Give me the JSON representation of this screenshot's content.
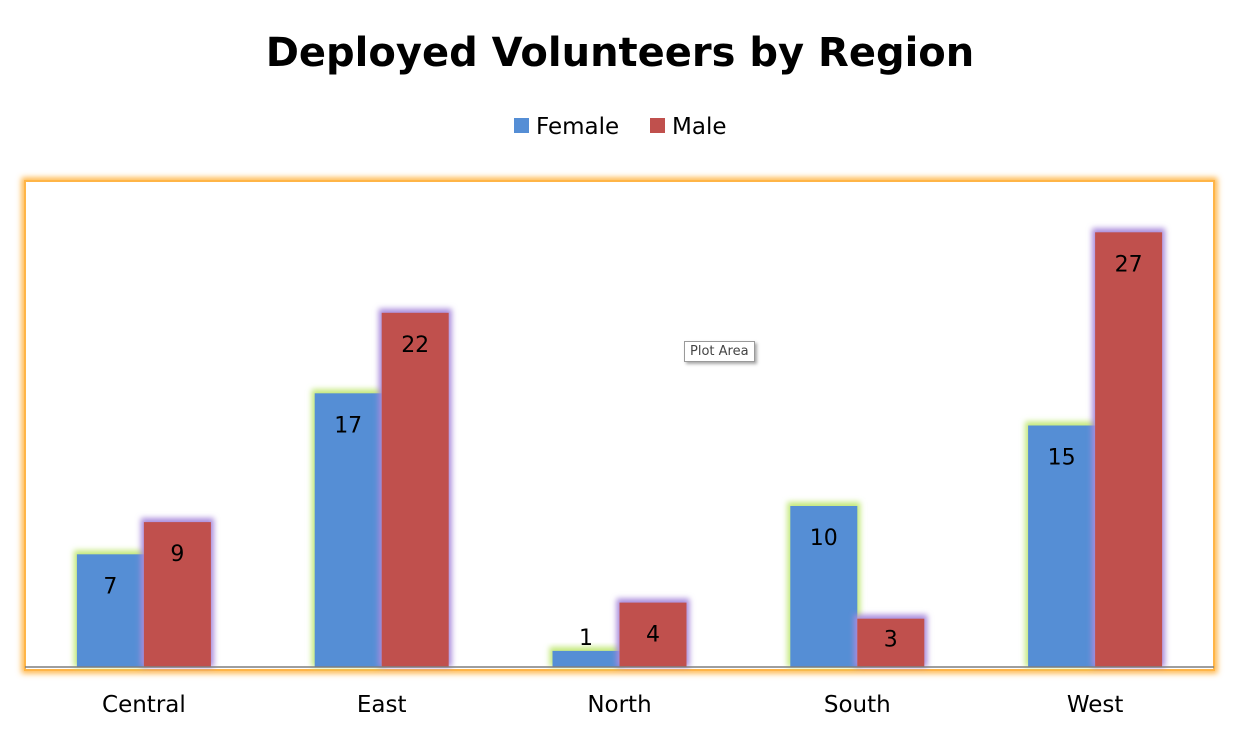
{
  "colors": {
    "female": "#558ED5",
    "male": "#C0504D",
    "plot_border": "#FFB547",
    "female_glow": "#C3E87A",
    "male_glow": "#A98BDC",
    "axis_line": "#7F7F7F"
  },
  "tooltip": {
    "text": "Plot Area"
  },
  "chart_data": {
    "type": "bar",
    "title": "Deployed Volunteers by Region",
    "categories": [
      "Central",
      "East",
      "North",
      "South",
      "West"
    ],
    "series": [
      {
        "name": "Female",
        "values": [
          7,
          17,
          1,
          10,
          15
        ]
      },
      {
        "name": "Male",
        "values": [
          9,
          22,
          4,
          3,
          27
        ]
      }
    ],
    "xlabel": "",
    "ylabel": "",
    "ylim": [
      0,
      30
    ],
    "grid": false,
    "legend": "top",
    "data_labels": true
  }
}
